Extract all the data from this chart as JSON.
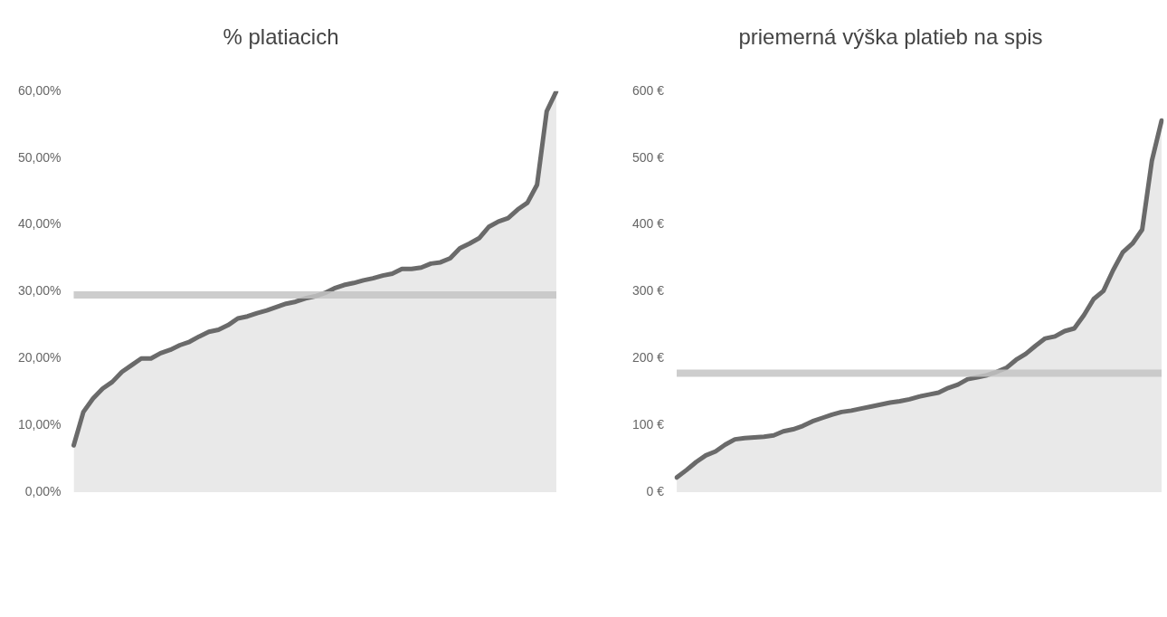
{
  "chart_data": [
    {
      "type": "area",
      "title": "% platiacich",
      "categories": [
        null,
        null,
        null,
        null,
        null,
        null,
        null,
        null,
        null,
        null,
        null,
        null,
        null,
        null,
        null,
        null,
        null,
        null,
        null,
        null,
        null,
        null,
        null,
        null,
        null,
        null,
        null,
        null,
        null,
        null,
        null,
        null,
        null,
        null,
        null,
        null,
        null,
        null,
        null,
        null,
        null,
        null,
        null,
        null,
        null,
        null,
        null,
        null,
        null,
        null,
        null
      ],
      "series": [
        {
          "color": "#6a6a6a",
          "values": [
            7,
            12,
            14,
            15.5,
            16.5,
            18,
            19,
            20,
            20,
            20.8,
            21.3,
            22,
            22.5,
            23.3,
            24,
            24.3,
            25,
            26,
            26.3,
            26.8,
            27.2,
            27.7,
            28.2,
            28.5,
            29,
            29.3,
            29.8,
            30.5,
            31,
            31.3,
            31.7,
            32,
            32.4,
            32.7,
            33.4,
            33.4,
            33.6,
            34.2,
            34.4,
            35,
            36.5,
            37.2,
            38,
            39.7,
            40.5,
            41,
            42.3,
            43.3,
            46,
            57,
            60
          ]
        }
      ],
      "ylim": [
        0,
        60
      ],
      "yticks": [
        {
          "value": 0,
          "label": "0,00%"
        },
        {
          "value": 10,
          "label": "10,00%"
        },
        {
          "value": 20,
          "label": "20,00%"
        },
        {
          "value": 30,
          "label": "30,00%"
        },
        {
          "value": 40,
          "label": "40,00%"
        },
        {
          "value": 50,
          "label": "50,00%"
        },
        {
          "value": 60,
          "label": "60,00%"
        }
      ],
      "ref_lines": [
        {
          "axis": "y",
          "value": 29.5,
          "color": "#c4c4c4"
        }
      ],
      "tick_labels": "y"
    },
    {
      "type": "area",
      "title": "priemerná výška platieb na spis",
      "categories": [
        null,
        null,
        null,
        null,
        null,
        null,
        null,
        null,
        null,
        null,
        null,
        null,
        null,
        null,
        null,
        null,
        null,
        null,
        null,
        null,
        null,
        null,
        null,
        null,
        null,
        null,
        null,
        null,
        null,
        null,
        null,
        null,
        null,
        null,
        null,
        null,
        null,
        null,
        null,
        null,
        null,
        null,
        null,
        null,
        null,
        null,
        null,
        null,
        null,
        null,
        null
      ],
      "series": [
        {
          "color": "#6a6a6a",
          "values": [
            22,
            33,
            45,
            55,
            61,
            71,
            79,
            81,
            82,
            83,
            85,
            91,
            94,
            99,
            106,
            111,
            116,
            120,
            122,
            125,
            128,
            131,
            134,
            136,
            139,
            143,
            146,
            149,
            156,
            161,
            169,
            172,
            175,
            180,
            186,
            198,
            207,
            219,
            230,
            233,
            241,
            245,
            265,
            289,
            301,
            332,
            359,
            372,
            393,
            496,
            556
          ]
        }
      ],
      "ylim": [
        0,
        600
      ],
      "yticks": [
        {
          "value": 0,
          "label": "0 €"
        },
        {
          "value": 100,
          "label": "100 €"
        },
        {
          "value": 200,
          "label": "200 €"
        },
        {
          "value": 300,
          "label": "300 €"
        },
        {
          "value": 400,
          "label": "400 €"
        },
        {
          "value": 500,
          "label": "500 €"
        },
        {
          "value": 600,
          "label": "600 €"
        }
      ],
      "ref_lines": [
        {
          "axis": "y",
          "value": 178,
          "color": "#c4c4c4"
        }
      ],
      "tick_labels": "y"
    }
  ]
}
